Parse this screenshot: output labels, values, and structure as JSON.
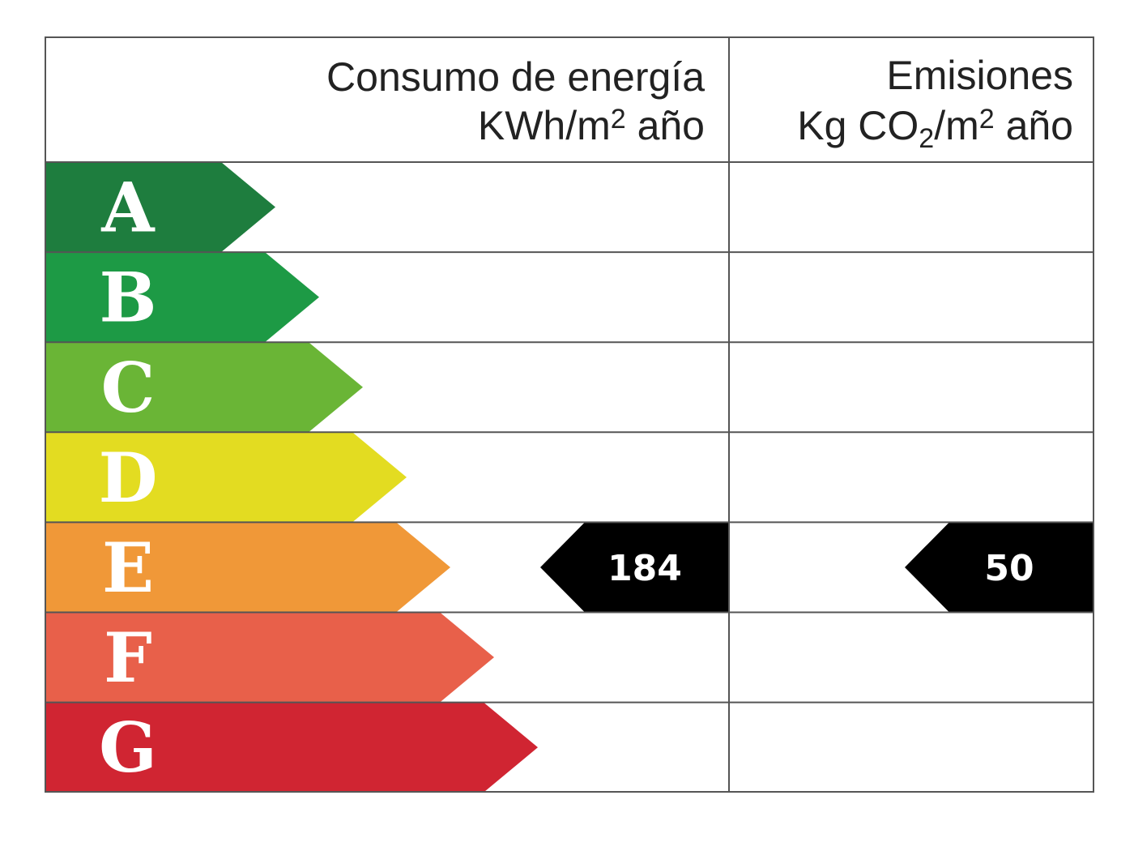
{
  "header": {
    "energy_line1": "Consumo de energía",
    "energy_line2": "KWh/m2 año",
    "emission_line1": "Emisiones",
    "emission_line2": "Kg CO2/m2 año"
  },
  "classes": [
    {
      "letter": "A",
      "color": "#1e7d3e"
    },
    {
      "letter": "B",
      "color": "#1d9a45"
    },
    {
      "letter": "C",
      "color": "#6ab536"
    },
    {
      "letter": "D",
      "color": "#e3dc21"
    },
    {
      "letter": "E",
      "color": "#f09838"
    },
    {
      "letter": "F",
      "color": "#e8604a"
    },
    {
      "letter": "G",
      "color": "#d02532"
    }
  ],
  "rating": {
    "energy_class": "E",
    "energy_value": "184",
    "emission_class": "E",
    "emission_value": "50",
    "marker_color": "#000000"
  }
}
